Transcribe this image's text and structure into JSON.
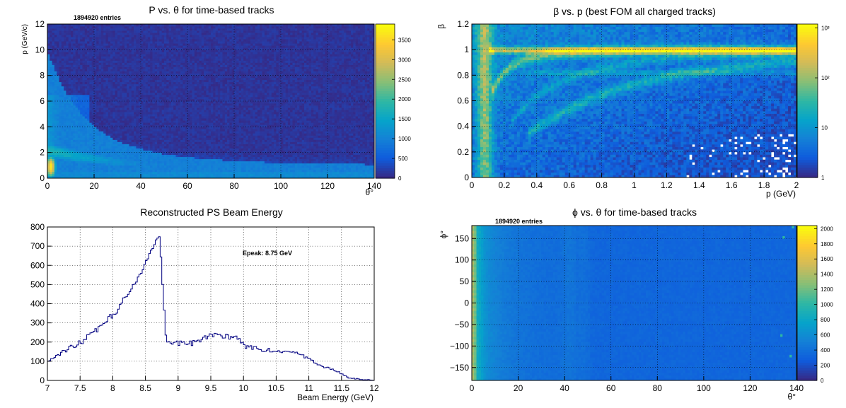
{
  "colors": {
    "viridis": [
      "#352a87",
      "#0f5cdd",
      "#1481d6",
      "#06a4ca",
      "#2eb7a4",
      "#87bf77",
      "#d1bb59",
      "#fec832",
      "#f9fb0e"
    ],
    "histogram_line": "#000080",
    "frame": "#000000",
    "grid": "#000000"
  },
  "chart_data": [
    {
      "id": "p_vs_theta",
      "type": "heatmap",
      "title": "P vs. θ for time-based tracks",
      "entries_label": "1894920 entries",
      "xlabel": "θ°",
      "ylabel": "p (GeV/c)",
      "xlim": [
        0,
        140
      ],
      "ylim": [
        0,
        12
      ],
      "xticks": [
        "0",
        "20",
        "40",
        "60",
        "80",
        "100",
        "120",
        "140"
      ],
      "yticks": [
        "0",
        "2",
        "4",
        "6",
        "8",
        "10",
        "12"
      ],
      "zticks": [
        "0",
        "500",
        "1000",
        "1500",
        "2000",
        "2500",
        "3000",
        "3500"
      ],
      "zlim": [
        0,
        3900
      ],
      "grid": true
    },
    {
      "id": "beta_vs_p",
      "type": "heatmap",
      "title": "β vs. p (best FOM all charged tracks)",
      "xlabel": "p (GeV)",
      "ylabel": "β",
      "xlim": [
        0,
        2
      ],
      "ylim": [
        0,
        1.2
      ],
      "xticks": [
        "0",
        "0.2",
        "0.4",
        "0.6",
        "0.8",
        "1",
        "1.2",
        "1.4",
        "1.6",
        "1.8",
        "2"
      ],
      "yticks": [
        "0",
        "0.2",
        "0.4",
        "0.6",
        "0.8",
        "1",
        "1.2"
      ],
      "zscale": "log",
      "zticks": [
        "1",
        "10",
        "10²",
        "10³"
      ],
      "zlim": [
        1,
        1200
      ],
      "grid": true
    },
    {
      "id": "beam_energy",
      "type": "line",
      "title": "Reconstructed PS Beam Energy",
      "xlabel": "Beam Energy (GeV)",
      "ylabel": "",
      "annotation": "Epeak: 8.75 GeV",
      "xlim": [
        7,
        12
      ],
      "ylim": [
        0,
        850
      ],
      "xticks": [
        "7",
        "7.5",
        "8",
        "8.5",
        "9",
        "9.5",
        "10",
        "10.5",
        "11",
        "11.5",
        "12"
      ],
      "yticks": [
        "0",
        "100",
        "200",
        "300",
        "400",
        "500",
        "600",
        "700",
        "800"
      ],
      "grid": true,
      "series": [
        {
          "x": [
            7.0,
            7.1,
            7.2,
            7.3,
            7.4,
            7.5,
            7.6,
            7.7,
            7.8,
            7.9,
            8.0,
            8.1,
            8.2,
            8.3,
            8.4,
            8.5,
            8.6,
            8.65,
            8.7,
            8.75,
            8.8,
            8.85,
            8.9,
            9.0,
            9.1,
            9.2,
            9.3,
            9.4,
            9.5,
            9.6,
            9.7,
            9.8,
            9.9,
            10.0,
            10.1,
            10.2,
            10.3,
            10.4,
            10.5,
            10.6,
            10.7,
            10.8,
            10.9,
            11.0,
            11.1,
            11.2,
            11.3,
            11.4,
            11.5,
            11.6,
            11.7,
            11.8,
            11.9,
            12.0
          ],
          "values": [
            105,
            125,
            150,
            175,
            195,
            210,
            240,
            265,
            300,
            340,
            360,
            415,
            470,
            520,
            580,
            650,
            730,
            780,
            810,
            540,
            240,
            205,
            210,
            205,
            215,
            205,
            220,
            240,
            250,
            250,
            245,
            240,
            230,
            190,
            180,
            175,
            170,
            165,
            155,
            160,
            160,
            150,
            135,
            130,
            90,
            75,
            65,
            55,
            35,
            15,
            10,
            5,
            3,
            2
          ]
        }
      ]
    },
    {
      "id": "phi_vs_theta",
      "type": "heatmap",
      "title": "ϕ vs. θ for time-based tracks",
      "entries_label": "1894920 entries",
      "xlabel": "θ°",
      "ylabel": "ϕ°",
      "xlim": [
        0,
        140
      ],
      "ylim": [
        -180,
        180
      ],
      "xticks": [
        "0",
        "20",
        "40",
        "60",
        "80",
        "100",
        "120",
        "140"
      ],
      "yticks": [
        "−150",
        "−100",
        "−50",
        "0",
        "50",
        "100",
        "150"
      ],
      "zticks": [
        "0",
        "200",
        "400",
        "600",
        "800",
        "1000",
        "1200",
        "1400",
        "1600",
        "1800",
        "2000"
      ],
      "zlim": [
        0,
        2040
      ],
      "grid": true
    }
  ]
}
